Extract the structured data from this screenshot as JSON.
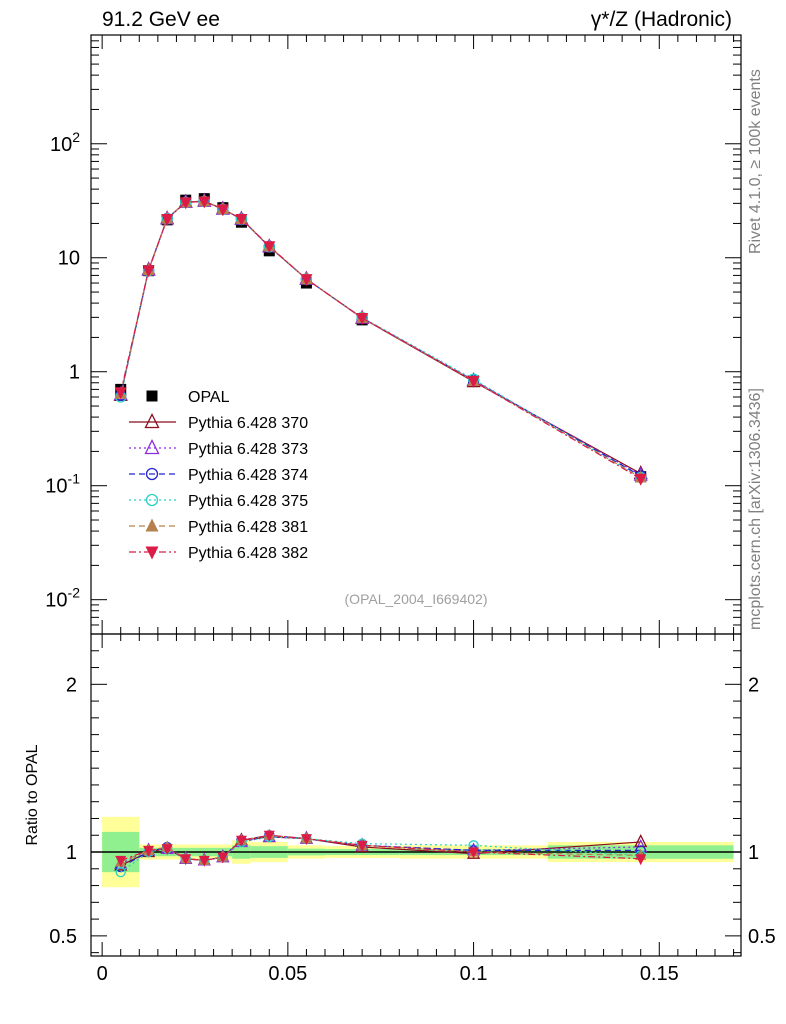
{
  "header": {
    "left": "91.2 GeV ee",
    "right": "γ*/Z (Hadronic)"
  },
  "side_labels": {
    "rivet": "Rivet 4.1.0, ≥ 100k events",
    "source": "mcplots.cern.ch [arXiv:1306.3436]"
  },
  "watermark": "(OPAL_2004_I669402)",
  "chart_data": [
    {
      "type": "line",
      "panel": "main",
      "yscale": "log",
      "ylim": [
        0.005,
        900
      ],
      "xlim": [
        -0.003,
        0.172
      ],
      "y_ticks": [
        "10^-2",
        "10^-1",
        "1",
        "10",
        "10^2"
      ],
      "x": [
        0.005,
        0.0125,
        0.0175,
        0.0225,
        0.0275,
        0.0325,
        0.0375,
        0.045,
        0.055,
        0.07,
        0.1,
        0.145
      ],
      "series": [
        {
          "name": "OPAL",
          "color": "#000000",
          "marker": "filled-square",
          "line": "none",
          "values": [
            0.7,
            7.7,
            21.5,
            32.0,
            33.0,
            27.5,
            20.5,
            11.5,
            6.0,
            2.85,
            0.83,
            0.12
          ]
        },
        {
          "name": "Pythia 6.428 370",
          "color": "#8b0d1f",
          "marker": "open-triangle-up",
          "line": "solid",
          "values": [
            0.62,
            7.85,
            22.0,
            30.8,
            31.4,
            26.8,
            21.9,
            12.5,
            6.5,
            2.95,
            0.82,
            0.128
          ]
        },
        {
          "name": "Pythia 6.428 373",
          "color": "#8a2be2",
          "marker": "open-triangle-up",
          "line": "dotted",
          "values": [
            0.63,
            7.8,
            22.0,
            30.7,
            31.3,
            26.7,
            21.8,
            12.5,
            6.5,
            2.96,
            0.84,
            0.124
          ]
        },
        {
          "name": "Pythia 6.428 374",
          "color": "#2525d0",
          "marker": "open-circle",
          "line": "dashed",
          "values": [
            0.62,
            7.75,
            22.1,
            30.8,
            31.3,
            26.7,
            21.9,
            12.6,
            6.5,
            2.97,
            0.84,
            0.122
          ]
        },
        {
          "name": "Pythia 6.428 375",
          "color": "#28d2c0",
          "marker": "open-circle",
          "line": "dotted",
          "values": [
            0.6,
            7.7,
            22.0,
            30.6,
            31.2,
            26.6,
            21.8,
            12.5,
            6.5,
            2.99,
            0.86,
            0.118
          ]
        },
        {
          "name": "Pythia 6.428 381",
          "color": "#b5824e",
          "marker": "filled-triangle-up",
          "line": "dashed",
          "values": [
            0.64,
            7.8,
            22.1,
            30.7,
            31.3,
            26.7,
            21.9,
            12.6,
            6.5,
            2.97,
            0.83,
            0.118
          ]
        },
        {
          "name": "Pythia 6.428 382",
          "color": "#dc1c47",
          "marker": "filled-triangle-down",
          "line": "dashdot",
          "values": [
            0.66,
            7.75,
            21.9,
            30.6,
            31.2,
            26.6,
            21.9,
            12.6,
            6.5,
            2.96,
            0.83,
            0.115
          ]
        }
      ]
    },
    {
      "type": "line",
      "panel": "ratio",
      "ylabel": "Ratio to OPAL",
      "ylim": [
        0.38,
        2.3
      ],
      "y_ticks": [
        "0.5",
        "1",
        "2"
      ],
      "x_ticks": [
        "0",
        "0.05",
        "0.1",
        "0.15"
      ],
      "xlim": [
        -0.003,
        0.172
      ],
      "bands": {
        "x_edges": [
          0,
          0.01,
          0.015,
          0.02,
          0.025,
          0.03,
          0.035,
          0.04,
          0.05,
          0.06,
          0.08,
          0.12,
          0.17
        ],
        "green_half_width": [
          0.12,
          0.025,
          0.025,
          0.025,
          0.025,
          0.025,
          0.04,
          0.035,
          0.02,
          0.018,
          0.018,
          0.04
        ],
        "yellow_half_width": [
          0.21,
          0.045,
          0.045,
          0.045,
          0.045,
          0.045,
          0.07,
          0.06,
          0.04,
          0.035,
          0.04,
          0.06
        ],
        "green_color": "#90f090",
        "yellow_color": "#ffff99"
      },
      "x": [
        0.005,
        0.0125,
        0.0175,
        0.0225,
        0.0275,
        0.0325,
        0.0375,
        0.045,
        0.055,
        0.07,
        0.1,
        0.145
      ],
      "series": [
        {
          "name": "Pythia 6.428 370",
          "values": [
            0.92,
            1.0,
            1.02,
            0.96,
            0.95,
            0.97,
            1.07,
            1.09,
            1.08,
            1.03,
            0.99,
            1.06
          ]
        },
        {
          "name": "Pythia 6.428 373",
          "values": [
            0.93,
            1.01,
            1.02,
            0.96,
            0.95,
            0.97,
            1.06,
            1.09,
            1.08,
            1.04,
            1.01,
            1.03
          ]
        },
        {
          "name": "Pythia 6.428 374",
          "values": [
            0.91,
            1.0,
            1.03,
            0.96,
            0.95,
            0.97,
            1.07,
            1.1,
            1.08,
            1.04,
            1.01,
            1.01
          ]
        },
        {
          "name": "Pythia 6.428 375",
          "values": [
            0.88,
            1.0,
            1.02,
            0.96,
            0.95,
            0.97,
            1.06,
            1.09,
            1.08,
            1.05,
            1.04,
            0.98
          ]
        },
        {
          "name": "Pythia 6.428 381",
          "values": [
            0.94,
            1.01,
            1.03,
            0.96,
            0.95,
            0.97,
            1.07,
            1.1,
            1.08,
            1.04,
            1.0,
            0.98
          ]
        },
        {
          "name": "Pythia 6.428 382",
          "values": [
            0.95,
            1.01,
            1.02,
            0.96,
            0.95,
            0.97,
            1.07,
            1.1,
            1.08,
            1.04,
            1.0,
            0.96
          ]
        }
      ]
    }
  ]
}
